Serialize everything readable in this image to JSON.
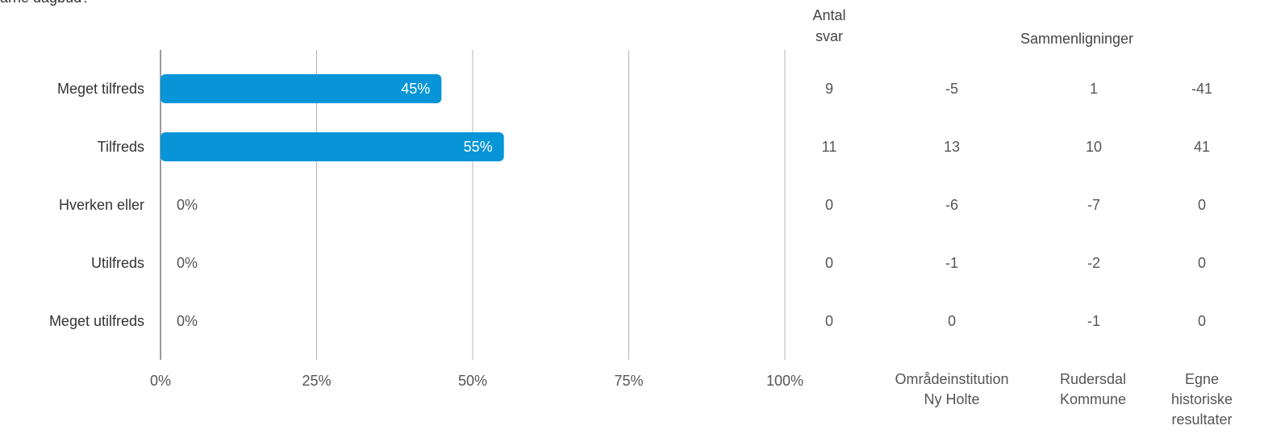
{
  "partial_title": "arne dagbud?",
  "headers": {
    "count": "Antal\nsvar",
    "comparisons": "Sammenligninger"
  },
  "colors": {
    "bar": "#0795d8",
    "gridline": "#b5b5b5",
    "axis": "#9a9a9a"
  },
  "chart_data": {
    "type": "bar",
    "orientation": "horizontal",
    "categories": [
      "Meget tilfreds",
      "Tilfreds",
      "Hverken eller",
      "Utilfreds",
      "Meget utilfreds"
    ],
    "values": [
      45,
      55,
      0,
      0,
      0
    ],
    "value_labels": [
      "45%",
      "55%",
      "0%",
      "0%",
      "0%"
    ],
    "xlim": [
      0,
      100
    ],
    "x_ticks": [
      "0%",
      "25%",
      "50%",
      "75%",
      "100%"
    ],
    "grid": true,
    "legend": "none"
  },
  "table": {
    "columns": [
      {
        "label": "",
        "values": [
          "9",
          "11",
          "0",
          "0",
          "0"
        ]
      },
      {
        "label": "Områdeinstitution\nNy Holte",
        "values": [
          "-5",
          "13",
          "-6",
          "-1",
          "0"
        ]
      },
      {
        "label": "Rudersdal\nKommune",
        "values": [
          "1",
          "10",
          "-7",
          "-2",
          "-1"
        ]
      },
      {
        "label": "Egne\nhistoriske\nresultater",
        "values": [
          "-41",
          "41",
          "0",
          "0",
          "0"
        ]
      }
    ]
  }
}
